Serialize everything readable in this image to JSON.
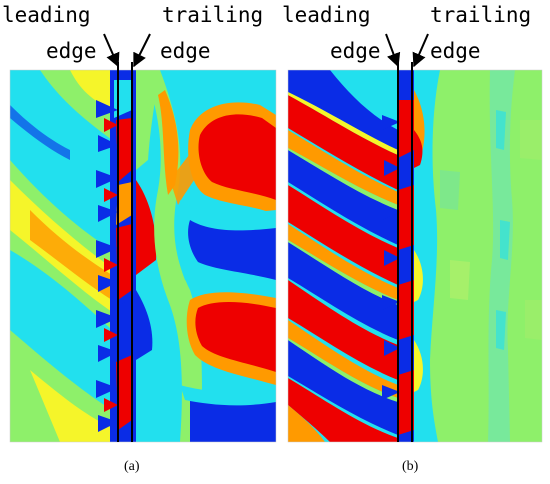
{
  "panels": [
    {
      "id": "a",
      "caption": "(a)",
      "leading_label": [
        "leading",
        "edge"
      ],
      "trailing_label": [
        "trailing",
        "edge"
      ]
    },
    {
      "id": "b",
      "caption": "(b)",
      "leading_label": [
        "leading",
        "edge"
      ],
      "trailing_label": [
        "trailing",
        "edge"
      ]
    }
  ],
  "colors": {
    "red": "#ee0000",
    "orange": "#ff9a00",
    "yellow": "#f5f52a",
    "green": "#8ef06a",
    "cyan": "#22e0ee",
    "blue": "#0a2ce6",
    "line": "#000000"
  }
}
